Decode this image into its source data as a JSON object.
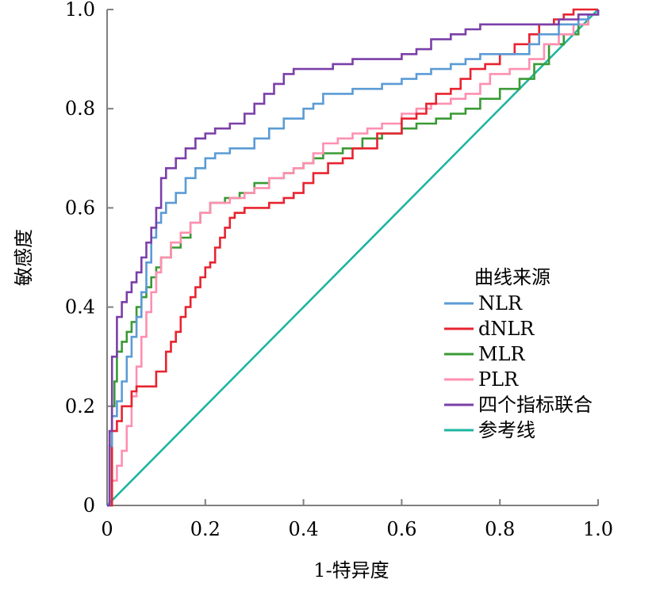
{
  "chart_data": {
    "type": "line",
    "xlabel": "1-特异度",
    "ylabel": "敏感度",
    "xlim": [
      0,
      1.0
    ],
    "ylim": [
      0,
      1.0
    ],
    "xticks": [
      0,
      0.2,
      0.4,
      0.6,
      0.8,
      1.0
    ],
    "xtick_labels": [
      "0",
      "0.2",
      "0.4",
      "0.6",
      "0.8",
      "1.0"
    ],
    "yticks": [
      0,
      0.2,
      0.4,
      0.6,
      0.8,
      1.0
    ],
    "ytick_labels": [
      "0",
      "0.2",
      "0.4",
      "0.6",
      "0.8",
      "1.0"
    ],
    "grid": false,
    "legend": {
      "title": "曲线来源",
      "position": "right"
    },
    "series": [
      {
        "name": "NLR",
        "color": "#5b9bd5",
        "x": [
          0,
          0.005,
          0.01,
          0.02,
          0.03,
          0.04,
          0.05,
          0.06,
          0.07,
          0.08,
          0.09,
          0.1,
          0.11,
          0.12,
          0.14,
          0.16,
          0.18,
          0.2,
          0.22,
          0.25,
          0.28,
          0.3,
          0.33,
          0.36,
          0.38,
          0.4,
          0.42,
          0.44,
          0.47,
          0.5,
          0.53,
          0.56,
          0.6,
          0.63,
          0.66,
          0.7,
          0.73,
          0.76,
          0.8,
          0.84,
          0.86,
          0.88,
          0.92,
          0.96,
          0.98,
          1.0
        ],
        "y": [
          0,
          0.12,
          0.18,
          0.21,
          0.25,
          0.3,
          0.34,
          0.38,
          0.43,
          0.49,
          0.54,
          0.57,
          0.59,
          0.61,
          0.63,
          0.66,
          0.68,
          0.7,
          0.71,
          0.72,
          0.72,
          0.74,
          0.76,
          0.78,
          0.78,
          0.8,
          0.81,
          0.83,
          0.83,
          0.84,
          0.84,
          0.85,
          0.86,
          0.87,
          0.88,
          0.89,
          0.9,
          0.91,
          0.91,
          0.91,
          0.93,
          0.95,
          0.97,
          0.98,
          0.99,
          1.0
        ]
      },
      {
        "name": "dNLR",
        "color": "#e8232f",
        "x": [
          0,
          0.01,
          0.02,
          0.03,
          0.05,
          0.06,
          0.08,
          0.1,
          0.12,
          0.13,
          0.14,
          0.15,
          0.16,
          0.17,
          0.18,
          0.19,
          0.2,
          0.21,
          0.22,
          0.23,
          0.24,
          0.25,
          0.26,
          0.28,
          0.3,
          0.33,
          0.36,
          0.38,
          0.4,
          0.42,
          0.45,
          0.48,
          0.5,
          0.55,
          0.6,
          0.63,
          0.65,
          0.67,
          0.7,
          0.72,
          0.74,
          0.77,
          0.8,
          0.83,
          0.86,
          0.88,
          0.91,
          0.93,
          0.95,
          0.98,
          1.0
        ],
        "y": [
          0,
          0.15,
          0.17,
          0.2,
          0.23,
          0.24,
          0.24,
          0.27,
          0.31,
          0.33,
          0.35,
          0.38,
          0.4,
          0.42,
          0.44,
          0.46,
          0.48,
          0.49,
          0.52,
          0.54,
          0.56,
          0.58,
          0.59,
          0.6,
          0.6,
          0.61,
          0.62,
          0.63,
          0.65,
          0.67,
          0.69,
          0.7,
          0.72,
          0.75,
          0.78,
          0.79,
          0.81,
          0.83,
          0.84,
          0.86,
          0.88,
          0.89,
          0.91,
          0.93,
          0.95,
          0.97,
          0.98,
          0.99,
          1.0,
          1.0,
          1.0
        ]
      },
      {
        "name": "MLR",
        "color": "#3a9a35",
        "x": [
          0,
          0.01,
          0.015,
          0.02,
          0.03,
          0.04,
          0.05,
          0.06,
          0.07,
          0.08,
          0.09,
          0.1,
          0.11,
          0.13,
          0.15,
          0.17,
          0.19,
          0.21,
          0.24,
          0.27,
          0.3,
          0.33,
          0.36,
          0.38,
          0.4,
          0.42,
          0.44,
          0.48,
          0.52,
          0.56,
          0.6,
          0.63,
          0.67,
          0.7,
          0.73,
          0.76,
          0.8,
          0.84,
          0.87,
          0.9,
          0.93,
          0.96,
          0.98,
          1.0
        ],
        "y": [
          0,
          0.2,
          0.25,
          0.31,
          0.33,
          0.35,
          0.37,
          0.4,
          0.42,
          0.44,
          0.46,
          0.48,
          0.5,
          0.52,
          0.54,
          0.57,
          0.59,
          0.61,
          0.62,
          0.63,
          0.65,
          0.66,
          0.67,
          0.68,
          0.69,
          0.7,
          0.71,
          0.72,
          0.74,
          0.75,
          0.76,
          0.77,
          0.78,
          0.79,
          0.8,
          0.82,
          0.84,
          0.86,
          0.89,
          0.93,
          0.95,
          0.97,
          0.99,
          1.0
        ]
      },
      {
        "name": "PLR",
        "color": "#ff8fb0",
        "x": [
          0,
          0.01,
          0.02,
          0.03,
          0.04,
          0.05,
          0.06,
          0.07,
          0.08,
          0.09,
          0.1,
          0.11,
          0.13,
          0.15,
          0.17,
          0.19,
          0.21,
          0.25,
          0.28,
          0.3,
          0.33,
          0.36,
          0.38,
          0.4,
          0.42,
          0.44,
          0.47,
          0.5,
          0.53,
          0.56,
          0.6,
          0.63,
          0.66,
          0.7,
          0.73,
          0.76,
          0.78,
          0.82,
          0.86,
          0.89,
          0.92,
          0.95,
          0.98,
          1.0
        ],
        "y": [
          0,
          0.05,
          0.08,
          0.11,
          0.16,
          0.22,
          0.28,
          0.34,
          0.39,
          0.43,
          0.47,
          0.5,
          0.53,
          0.55,
          0.57,
          0.59,
          0.61,
          0.62,
          0.63,
          0.64,
          0.66,
          0.67,
          0.68,
          0.69,
          0.71,
          0.73,
          0.74,
          0.75,
          0.76,
          0.77,
          0.79,
          0.8,
          0.81,
          0.82,
          0.83,
          0.85,
          0.87,
          0.88,
          0.9,
          0.93,
          0.95,
          0.97,
          0.99,
          1.0
        ]
      },
      {
        "name": "四个指标联合",
        "color": "#7b3fa8",
        "x": [
          0,
          0.005,
          0.01,
          0.02,
          0.03,
          0.04,
          0.05,
          0.06,
          0.07,
          0.08,
          0.09,
          0.1,
          0.11,
          0.12,
          0.14,
          0.16,
          0.18,
          0.2,
          0.22,
          0.25,
          0.28,
          0.3,
          0.32,
          0.34,
          0.36,
          0.38,
          0.4,
          0.43,
          0.46,
          0.5,
          0.55,
          0.6,
          0.63,
          0.66,
          0.7,
          0.73,
          0.76,
          0.8,
          0.84,
          0.88,
          0.92,
          0.96,
          1.0
        ],
        "y": [
          0,
          0.15,
          0.3,
          0.38,
          0.41,
          0.43,
          0.45,
          0.47,
          0.5,
          0.53,
          0.56,
          0.6,
          0.66,
          0.68,
          0.7,
          0.72,
          0.74,
          0.75,
          0.76,
          0.77,
          0.79,
          0.81,
          0.83,
          0.85,
          0.87,
          0.88,
          0.88,
          0.88,
          0.89,
          0.9,
          0.9,
          0.91,
          0.92,
          0.94,
          0.95,
          0.96,
          0.97,
          0.97,
          0.97,
          0.97,
          0.98,
          0.99,
          1.0
        ]
      },
      {
        "name": "参考线",
        "color": "#1fb5a0",
        "x": [
          0,
          1.0
        ],
        "y": [
          0,
          1.0
        ]
      }
    ]
  }
}
